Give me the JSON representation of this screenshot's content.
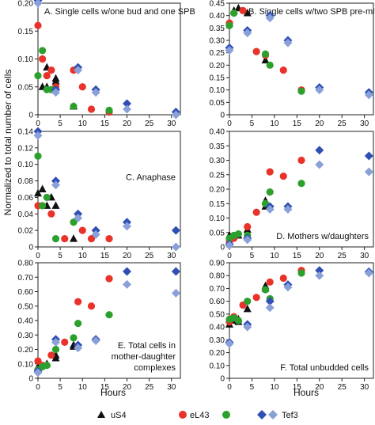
{
  "figure": {
    "ylabel": "Normalized to total number of cells",
    "xlabel": "Hours",
    "legend": [
      {
        "label": "uS4",
        "marker": "triangle"
      },
      {
        "label": "eL43",
        "marker": "circle"
      },
      {
        "label": "Tef3",
        "marker": "diamond"
      }
    ],
    "colors": {
      "triangle": "#111111",
      "circle_a": "#e8322a",
      "circle_b": "#2ca02c",
      "diamond_a": "#2f4fb5",
      "diamond_b": "#8aa0d8"
    }
  },
  "chart_data": [
    {
      "type": "scatter",
      "title": "A. Single cells w/one bud and one SPB",
      "xlabel": "",
      "ylabel": "",
      "xlim": [
        0,
        32
      ],
      "ylim": [
        0,
        0.2
      ],
      "xticks": [
        0,
        5,
        10,
        15,
        20,
        25,
        30
      ],
      "yticks": [
        0,
        0.05,
        0.1,
        0.15,
        0.2
      ],
      "ytick_labels": [
        "0",
        "0.05",
        "0.10",
        "0.15",
        "0.20"
      ],
      "title_pos": "top-left",
      "series": [
        {
          "name": "uS4 (a)",
          "marker": "triangle",
          "color": "#111111",
          "x": [
            1,
            2,
            4,
            8
          ],
          "y": [
            0.05,
            0.085,
            0.06,
            0.015
          ]
        },
        {
          "name": "uS4 (b)",
          "marker": "triangle",
          "color": "#111111",
          "x": [
            2,
            4
          ],
          "y": [
            0.05,
            0.065
          ]
        },
        {
          "name": "eL43 (a)",
          "marker": "circle",
          "color": "#e8322a",
          "x": [
            0,
            1,
            2,
            3,
            4,
            8,
            10,
            12,
            16
          ],
          "y": [
            0.16,
            0.1,
            0.07,
            0.08,
            0.05,
            0.08,
            0.05,
            0.01,
            0.005
          ]
        },
        {
          "name": "eL43 (b)",
          "marker": "circle",
          "color": "#2ca02c",
          "x": [
            0,
            1,
            2,
            3,
            8,
            16
          ],
          "y": [
            0.07,
            0.115,
            0.045,
            0.045,
            0.015,
            0.008
          ]
        },
        {
          "name": "Tef3 (a)",
          "marker": "diamond",
          "color": "#2f4fb5",
          "x": [
            0,
            4,
            9,
            13,
            20,
            31
          ],
          "y": [
            0.205,
            0.045,
            0.085,
            0.045,
            0.02,
            0.005
          ]
        },
        {
          "name": "Tef3 (b)",
          "marker": "diamond",
          "color": "#8aa0d8",
          "x": [
            0,
            4,
            9,
            13,
            20,
            31
          ],
          "y": [
            0.2,
            0.04,
            0.08,
            0.04,
            0.01,
            0.0
          ]
        }
      ]
    },
    {
      "type": "scatter",
      "title": "B. Single cells w/two SPB pre-mitosis",
      "xlabel": "",
      "ylabel": "",
      "xlim": [
        0,
        32
      ],
      "ylim": [
        0,
        0.45
      ],
      "xticks": [
        0,
        5,
        10,
        15,
        20,
        25,
        30
      ],
      "yticks": [
        0,
        0.05,
        0.1,
        0.15,
        0.2,
        0.25,
        0.3,
        0.35,
        0.4,
        0.45
      ],
      "ytick_labels": [
        "0",
        "0.05",
        "0.10",
        "0.15",
        "0.20",
        "0.25",
        "0.30",
        "0.35",
        "0.40",
        "0.45"
      ],
      "title_pos": "top-right",
      "series": [
        {
          "name": "uS4 (a)",
          "marker": "triangle",
          "color": "#111111",
          "x": [
            0,
            1,
            2,
            4
          ],
          "y": [
            0.37,
            0.42,
            0.43,
            0.41
          ]
        },
        {
          "name": "uS4 (b)",
          "marker": "triangle",
          "color": "#111111",
          "x": [
            8
          ],
          "y": [
            0.22
          ]
        },
        {
          "name": "eL43 (a)",
          "marker": "circle",
          "color": "#e8322a",
          "x": [
            0,
            3,
            6,
            8,
            12,
            16
          ],
          "y": [
            0.37,
            0.42,
            0.255,
            0.24,
            0.18,
            0.1
          ]
        },
        {
          "name": "eL43 (b)",
          "marker": "circle",
          "color": "#2ca02c",
          "x": [
            0,
            1,
            8,
            9,
            16
          ],
          "y": [
            0.36,
            0.41,
            0.245,
            0.2,
            0.095
          ]
        },
        {
          "name": "Tef3 (a)",
          "marker": "diamond",
          "color": "#2f4fb5",
          "x": [
            0,
            4,
            9,
            13,
            20,
            31
          ],
          "y": [
            0.27,
            0.34,
            0.4,
            0.3,
            0.11,
            0.09
          ]
        },
        {
          "name": "Tef3 (b)",
          "marker": "diamond",
          "color": "#8aa0d8",
          "x": [
            0,
            4,
            9,
            13,
            20,
            31
          ],
          "y": [
            0.26,
            0.33,
            0.39,
            0.29,
            0.1,
            0.08
          ]
        }
      ]
    },
    {
      "type": "scatter",
      "title": "C. Anaphase",
      "xlabel": "",
      "ylabel": "",
      "xlim": [
        0,
        32
      ],
      "ylim": [
        0,
        0.14
      ],
      "xticks": [
        0,
        5,
        10,
        15,
        20,
        25,
        30
      ],
      "yticks": [
        0,
        0.02,
        0.04,
        0.06,
        0.08,
        0.1,
        0.12,
        0.14
      ],
      "ytick_labels": [
        "0",
        "0.02",
        "0.04",
        "0.06",
        "0.08",
        "0.10",
        "0.12",
        "0.14"
      ],
      "title_pos": "center-right",
      "series": [
        {
          "name": "uS4 (a)",
          "marker": "triangle",
          "color": "#111111",
          "x": [
            1,
            2,
            4,
            8
          ],
          "y": [
            0.07,
            0.05,
            0.05,
            0.01
          ]
        },
        {
          "name": "uS4 (b)",
          "marker": "triangle",
          "color": "#111111",
          "x": [
            0,
            3
          ],
          "y": [
            0.065,
            0.06
          ]
        },
        {
          "name": "eL43 (a)",
          "marker": "circle",
          "color": "#e8322a",
          "x": [
            0,
            3,
            6,
            10,
            12,
            16
          ],
          "y": [
            0.05,
            0.04,
            0.01,
            0.02,
            0.01,
            0.01
          ]
        },
        {
          "name": "eL43 (b)",
          "marker": "circle",
          "color": "#2ca02c",
          "x": [
            0,
            1,
            2,
            4,
            8
          ],
          "y": [
            0.11,
            0.05,
            0.06,
            0.01,
            0.03
          ]
        },
        {
          "name": "Tef3 (a)",
          "marker": "diamond",
          "color": "#2f4fb5",
          "x": [
            0,
            4,
            9,
            13,
            20,
            31
          ],
          "y": [
            0.14,
            0.08,
            0.04,
            0.02,
            0.03,
            0.02
          ]
        },
        {
          "name": "Tef3 (b)",
          "marker": "diamond",
          "color": "#8aa0d8",
          "x": [
            0,
            4,
            9,
            13,
            20,
            31
          ],
          "y": [
            0.135,
            0.075,
            0.035,
            0.015,
            0.025,
            0.0
          ]
        }
      ]
    },
    {
      "type": "scatter",
      "title": "D. Mothers w/daughters",
      "xlabel": "",
      "ylabel": "",
      "xlim": [
        0,
        32
      ],
      "ylim": [
        0,
        0.4
      ],
      "xticks": [
        0,
        5,
        10,
        15,
        20,
        25,
        30
      ],
      "yticks": [
        0,
        0.05,
        0.1,
        0.15,
        0.2,
        0.25,
        0.3,
        0.35,
        0.4
      ],
      "ytick_labels": [
        "0",
        "0.05",
        "0.10",
        "0.15",
        "0.20",
        "0.25",
        "0.30",
        "0.35",
        "0.40"
      ],
      "title_pos": "bottom-right",
      "series": [
        {
          "name": "uS4 (a)",
          "marker": "triangle",
          "color": "#111111",
          "x": [
            0,
            2,
            4,
            8
          ],
          "y": [
            0.04,
            0.04,
            0.06,
            0.16
          ]
        },
        {
          "name": "uS4 (b)",
          "marker": "triangle",
          "color": "#111111",
          "x": [
            8
          ],
          "y": [
            0.14
          ]
        },
        {
          "name": "eL43 (a)",
          "marker": "circle",
          "color": "#e8322a",
          "x": [
            0,
            1,
            4,
            6,
            9,
            12,
            16
          ],
          "y": [
            0.02,
            0.03,
            0.07,
            0.12,
            0.26,
            0.245,
            0.3
          ]
        },
        {
          "name": "eL43 (b)",
          "marker": "circle",
          "color": "#2ca02c",
          "x": [
            0,
            1,
            2,
            4,
            8,
            9,
            16
          ],
          "y": [
            0.03,
            0.04,
            0.045,
            0.04,
            0.15,
            0.19,
            0.22
          ]
        },
        {
          "name": "Tef3 (a)",
          "marker": "diamond",
          "color": "#2f4fb5",
          "x": [
            0,
            4,
            9,
            13,
            20,
            31
          ],
          "y": [
            0.01,
            0.03,
            0.14,
            0.14,
            0.335,
            0.315
          ]
        },
        {
          "name": "Tef3 (b)",
          "marker": "diamond",
          "color": "#8aa0d8",
          "x": [
            0,
            4,
            9,
            13,
            20,
            31
          ],
          "y": [
            0.005,
            0.025,
            0.13,
            0.13,
            0.285,
            0.26
          ]
        }
      ]
    },
    {
      "type": "scatter",
      "title": "E. Total cells in mother-daughter complexes",
      "title_lines": [
        "E. Total cells in",
        "mother-daughter",
        "complexes"
      ],
      "xlabel": "Hours",
      "ylabel": "",
      "xlim": [
        0,
        32
      ],
      "ylim": [
        0,
        0.8
      ],
      "xticks": [
        0,
        5,
        10,
        15,
        20,
        25,
        30
      ],
      "yticks": [
        0,
        0.1,
        0.2,
        0.3,
        0.4,
        0.5,
        0.6,
        0.7,
        0.8
      ],
      "ytick_labels": [
        "0",
        "0.10",
        "0.20",
        "0.30",
        "0.40",
        "0.50",
        "0.60",
        "0.70",
        "0.80"
      ],
      "title_pos": "bottom-right",
      "series": [
        {
          "name": "uS4 (a)",
          "marker": "triangle",
          "color": "#111111",
          "x": [
            0,
            2,
            4,
            8
          ],
          "y": [
            0.08,
            0.1,
            0.14,
            0.22
          ]
        },
        {
          "name": "uS4 (b)",
          "marker": "triangle",
          "color": "#111111",
          "x": [
            4,
            8
          ],
          "y": [
            0.16,
            0.23
          ]
        },
        {
          "name": "eL43 (a)",
          "marker": "circle",
          "color": "#e8322a",
          "x": [
            0,
            1,
            3,
            6,
            9,
            12,
            16
          ],
          "y": [
            0.12,
            0.09,
            0.16,
            0.25,
            0.53,
            0.5,
            0.69
          ]
        },
        {
          "name": "eL43 (b)",
          "marker": "circle",
          "color": "#2ca02c",
          "x": [
            0,
            1,
            2,
            4,
            8,
            9,
            16
          ],
          "y": [
            0.06,
            0.08,
            0.09,
            0.2,
            0.28,
            0.38,
            0.44
          ]
        },
        {
          "name": "Tef3 (a)",
          "marker": "diamond",
          "color": "#2f4fb5",
          "x": [
            0,
            4,
            9,
            13,
            20,
            31
          ],
          "y": [
            0.05,
            0.27,
            0.23,
            0.27,
            0.74,
            0.74
          ]
        },
        {
          "name": "Tef3 (b)",
          "marker": "diamond",
          "color": "#8aa0d8",
          "x": [
            0,
            4,
            9,
            13,
            20,
            31
          ],
          "y": [
            0.04,
            0.25,
            0.21,
            0.26,
            0.65,
            0.59
          ]
        }
      ]
    },
    {
      "type": "scatter",
      "title": "F. Total unbudded cells",
      "xlabel": "Hours",
      "ylabel": "",
      "xlim": [
        0,
        32
      ],
      "ylim": [
        0,
        0.9
      ],
      "xticks": [
        0,
        5,
        10,
        15,
        20,
        25,
        30
      ],
      "yticks": [
        0,
        0.1,
        0.2,
        0.3,
        0.4,
        0.5,
        0.6,
        0.7,
        0.8,
        0.9
      ],
      "ytick_labels": [
        "0",
        "0.10",
        "0.20",
        "0.30",
        "0.40",
        "0.50",
        "0.60",
        "0.70",
        "0.80",
        "0.90"
      ],
      "title_pos": "bottom-right",
      "series": [
        {
          "name": "uS4 (a)",
          "marker": "triangle",
          "color": "#111111",
          "x": [
            0,
            1,
            2,
            4,
            8
          ],
          "y": [
            0.42,
            0.45,
            0.44,
            0.54,
            0.72
          ]
        },
        {
          "name": "uS4 (b)",
          "marker": "triangle",
          "color": "#111111",
          "x": [
            2,
            8
          ],
          "y": [
            0.46,
            0.7
          ]
        },
        {
          "name": "eL43 (a)",
          "marker": "circle",
          "color": "#e8322a",
          "x": [
            0,
            1,
            3,
            6,
            9,
            12,
            16
          ],
          "y": [
            0.44,
            0.48,
            0.57,
            0.63,
            0.75,
            0.78,
            0.84
          ]
        },
        {
          "name": "eL43 (b)",
          "marker": "circle",
          "color": "#2ca02c",
          "x": [
            0,
            1,
            2,
            4,
            8,
            9,
            16
          ],
          "y": [
            0.46,
            0.47,
            0.45,
            0.6,
            0.69,
            0.62,
            0.82
          ]
        },
        {
          "name": "Tef3 (a)",
          "marker": "diamond",
          "color": "#2f4fb5",
          "x": [
            0,
            4,
            9,
            13,
            20,
            31
          ],
          "y": [
            0.28,
            0.42,
            0.6,
            0.73,
            0.84,
            0.83
          ]
        },
        {
          "name": "Tef3 (b)",
          "marker": "diamond",
          "color": "#8aa0d8",
          "x": [
            0,
            4,
            9,
            13,
            20,
            31
          ],
          "y": [
            0.27,
            0.4,
            0.55,
            0.71,
            0.8,
            0.82
          ]
        }
      ]
    }
  ]
}
